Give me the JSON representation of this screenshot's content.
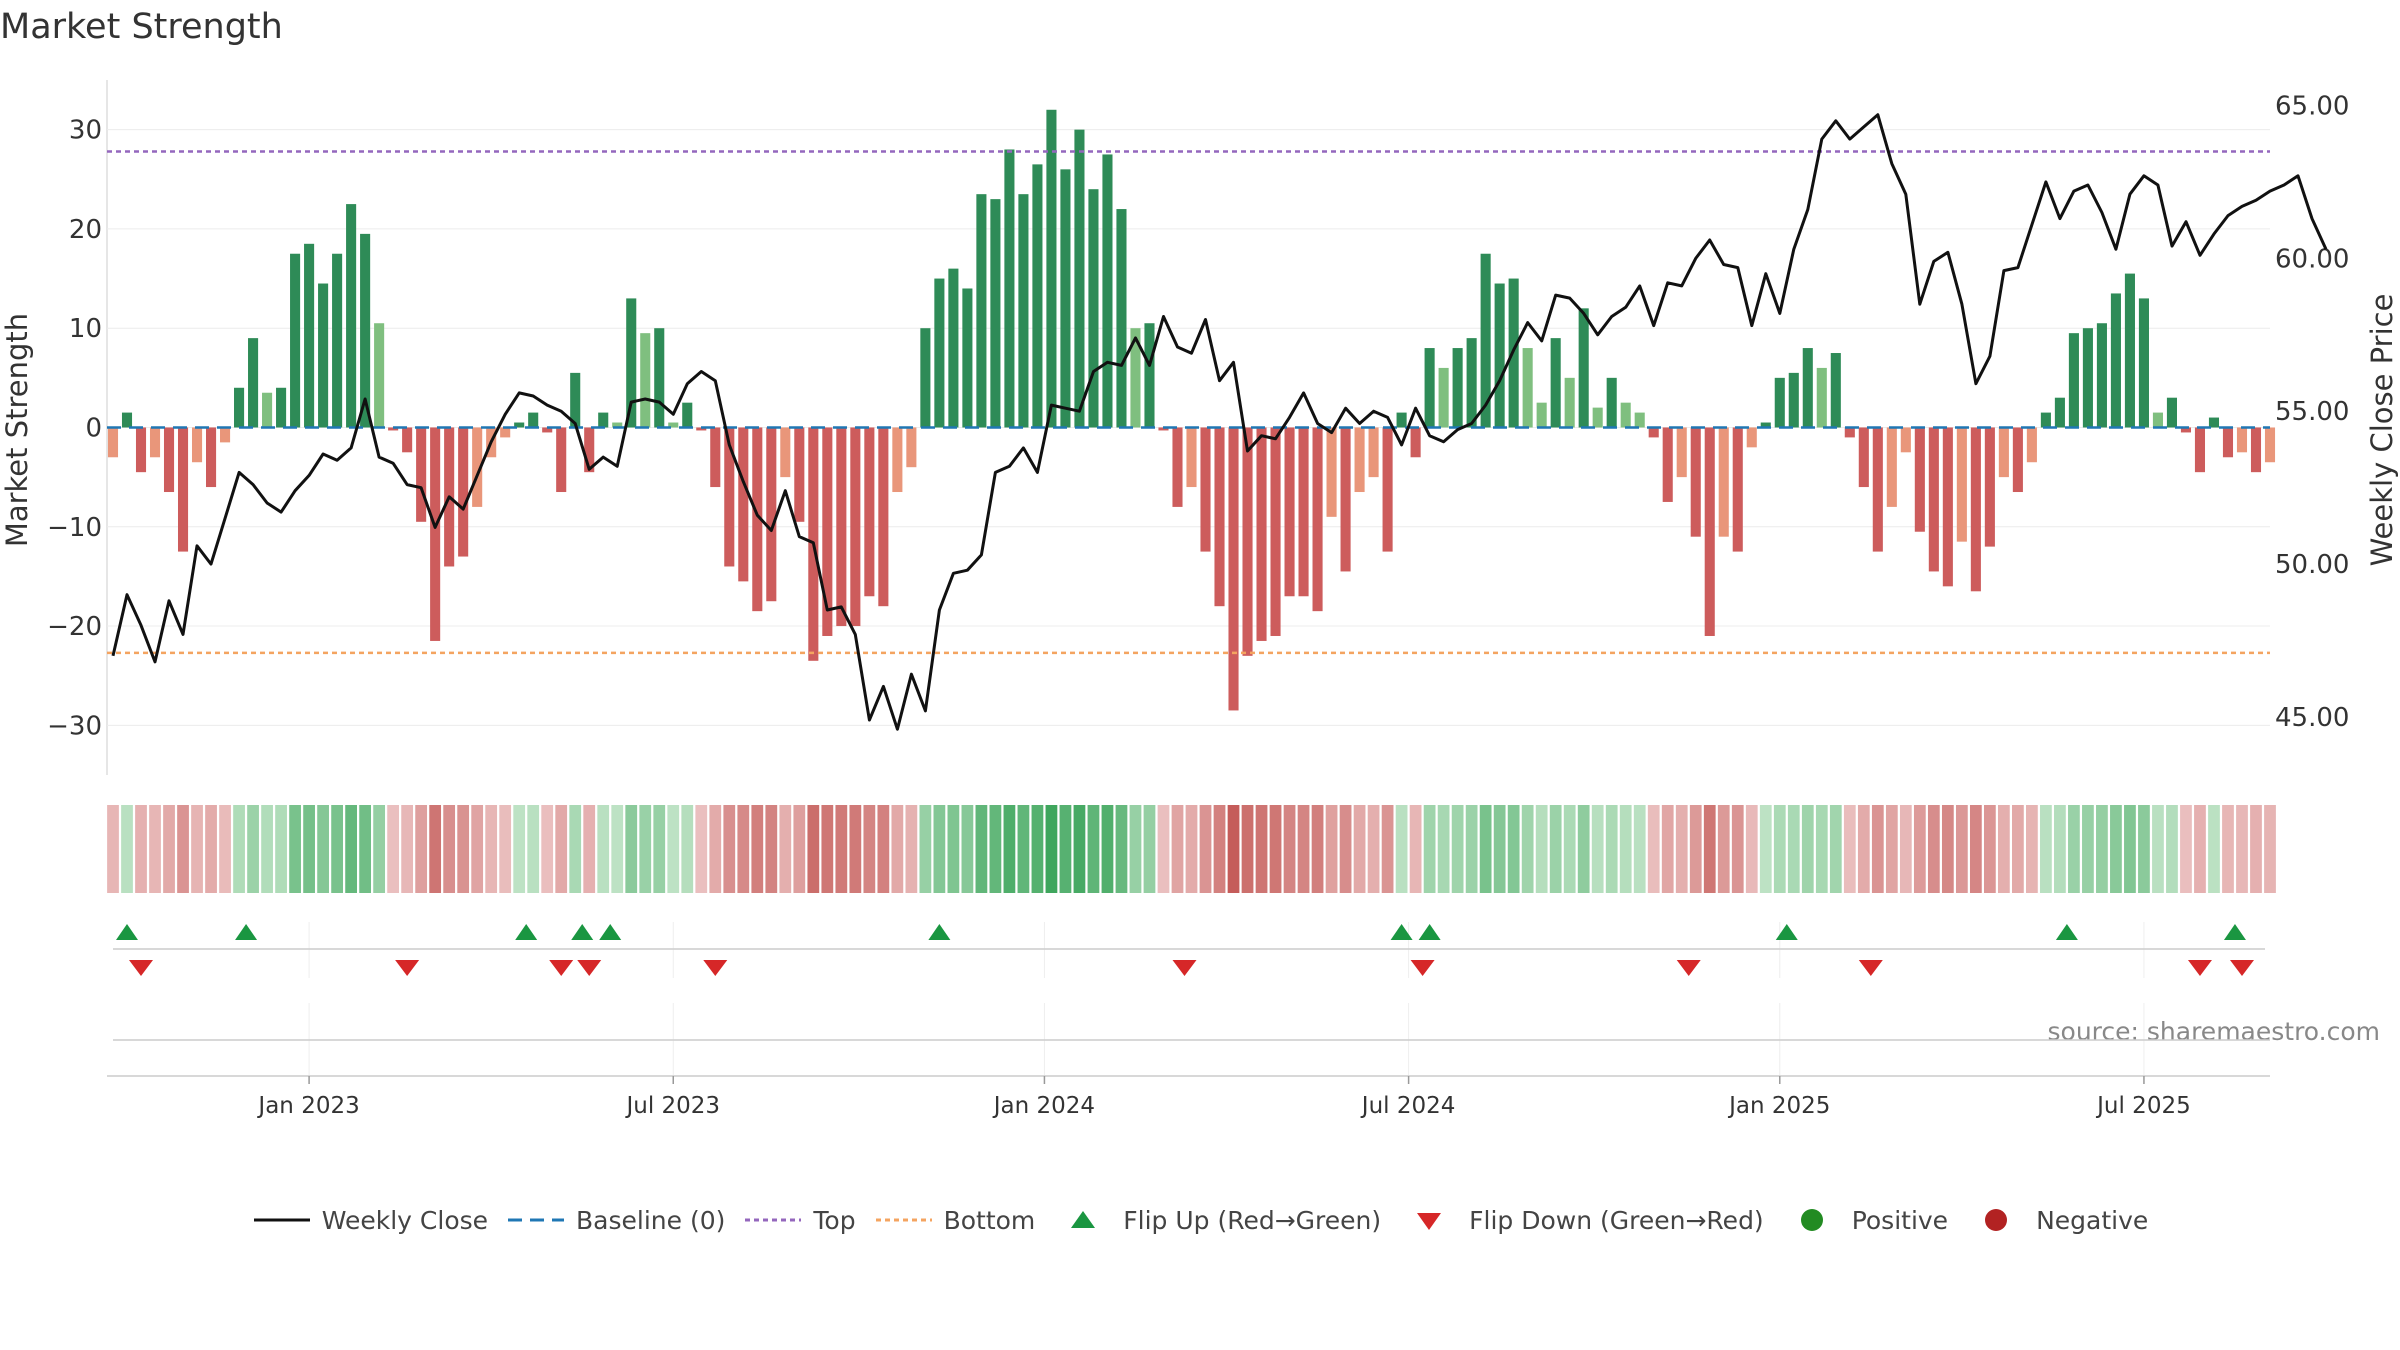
{
  "chart_data": {
    "title": "Market Strength",
    "type": "bar",
    "source": "source: sharemaestro.com",
    "y_left_label": "Market Strength",
    "y_right_label": "Weekly Close Price",
    "y_left_ticks": [
      30,
      20,
      10,
      0,
      -10,
      -20,
      -30
    ],
    "y_left_tick_labels": [
      "30",
      "20",
      "10",
      "0",
      "−10",
      "−20",
      "−30"
    ],
    "y_left_range": [
      -34.7,
      35.2
    ],
    "y_right_ticks": [
      "65.00",
      "60.00",
      "55.00",
      "50.00",
      "45.00"
    ],
    "y_right_range": [
      43.2,
      65.9
    ],
    "x_ticks": [
      "Jan 2023",
      "Jul 2023",
      "Jan 2024",
      "Jul 2024",
      "Jan 2025",
      "Jul 2025"
    ],
    "x_tick_weeks": [
      14,
      40,
      66.5,
      92.5,
      119,
      145
    ],
    "top_line": 27.8,
    "bottom_line": -22.7,
    "colors": {
      "dark_green": "#2e8b57",
      "light_green": "#7fbf7f",
      "dark_red": "#cd5c5c",
      "light_red": "#e9967a",
      "close_line": "#111111",
      "baseline": "#1f77b4",
      "top": "#9467bd",
      "bottom": "#f4a460",
      "flip_up": "#1a9641",
      "flip_down": "#d62728",
      "positive": "#228b22",
      "negative": "#b22222"
    },
    "strength": [
      -3,
      1.5,
      -4.5,
      -3,
      -6.5,
      -12.5,
      -3.5,
      -6,
      -1.5,
      4,
      9,
      3.5,
      4,
      17.5,
      18.5,
      14.5,
      17.5,
      22.5,
      19.5,
      10.5,
      -0.3,
      -2.5,
      -9.5,
      -21.5,
      -14,
      -13,
      -8,
      -3,
      -1,
      0.5,
      1.5,
      -0.5,
      -6.5,
      5.5,
      -4.5,
      1.5,
      0.5,
      13,
      9.5,
      10,
      0.5,
      2.5,
      -0.3,
      -6,
      -14,
      -15.5,
      -18.5,
      -17.5,
      -5,
      -9.5,
      -23.5,
      -21,
      -20,
      -20,
      -17,
      -18,
      -6.5,
      -4,
      10,
      15,
      16,
      14,
      23.5,
      23,
      28,
      23.5,
      26.5,
      32,
      26,
      30,
      24,
      27.5,
      22,
      10,
      10.5,
      -0.3,
      -8,
      -6,
      -12.5,
      -18,
      -28.5,
      -23,
      -21.5,
      -21,
      -17,
      -17,
      -18.5,
      -9,
      -14.5,
      -6.5,
      -5,
      -12.5,
      1.5,
      -3,
      8,
      6,
      8,
      9,
      17.5,
      14.5,
      15,
      8,
      2.5,
      9,
      5,
      12,
      2,
      5,
      2.5,
      1.5,
      -1,
      -7.5,
      -5,
      -11,
      -21,
      -11,
      -12.5,
      -2,
      0.5,
      5,
      5.5,
      8,
      6,
      7.5,
      -1,
      -6,
      -12.5,
      -8,
      -2.5,
      -10.5,
      -14.5,
      -16,
      -11.5,
      -16.5,
      -12,
      -5,
      -6.5,
      -3.5,
      1.5,
      3,
      9.5,
      10,
      10.5,
      13.5,
      15.5,
      13,
      1.5,
      3,
      -0.5,
      -4.5,
      1,
      -3,
      -2.5,
      -4.5,
      -3.5
    ],
    "close": [
      47,
      49,
      48,
      46.8,
      48.8,
      47.7,
      50.6,
      50,
      51.5,
      53,
      52.6,
      52,
      51.7,
      52.4,
      52.9,
      53.6,
      53.4,
      53.8,
      55.4,
      53.5,
      53.3,
      52.6,
      52.5,
      51.2,
      52.2,
      51.8,
      52.9,
      54,
      54.9,
      55.6,
      55.5,
      55.2,
      55,
      54.6,
      53.1,
      53.5,
      53.2,
      55.3,
      55.4,
      55.3,
      54.9,
      55.9,
      56.3,
      56,
      53.9,
      52.7,
      51.6,
      51.1,
      52.4,
      50.9,
      50.7,
      48.5,
      48.6,
      47.7,
      44.9,
      46,
      44.6,
      46.4,
      45.2,
      48.5,
      49.7,
      49.8,
      50.3,
      53,
      53.2,
      53.8,
      53,
      55.2,
      55.1,
      55,
      56.3,
      56.6,
      56.5,
      57.4,
      56.5,
      58.1,
      57.1,
      56.9,
      58,
      56,
      56.6,
      53.7,
      54.2,
      54.1,
      54.8,
      55.6,
      54.6,
      54.3,
      55.1,
      54.6,
      55,
      54.8,
      53.9,
      55.1,
      54.2,
      54,
      54.4,
      54.6,
      55.2,
      56,
      57,
      57.9,
      57.3,
      58.8,
      58.7,
      58.2,
      57.5,
      58.1,
      58.4,
      59.1,
      57.8,
      59.2,
      59.1,
      60,
      60.6,
      59.8,
      59.7,
      57.8,
      59.5,
      58.2,
      60.3,
      61.6,
      63.9,
      64.5,
      63.9,
      64.3,
      64.7,
      63.1,
      62.1,
      58.5,
      59.9,
      60.2,
      58.5,
      55.9,
      56.8,
      59.6,
      59.7,
      61.1,
      62.5,
      61.3,
      62.2,
      62.4,
      61.5,
      60.3,
      62.1,
      62.7,
      62.4,
      60.4,
      61.2,
      60.1,
      60.8,
      61.4,
      61.7,
      61.9,
      62.2,
      62.4,
      62.7,
      61.3,
      60.3
    ],
    "flip_up": [
      1,
      9.5,
      29.5,
      33.5,
      35.5,
      59,
      92,
      94,
      119.5,
      139.5,
      151.5
    ],
    "flip_down": [
      2,
      21,
      32,
      34,
      43,
      76.5,
      93.5,
      112.5,
      125.5,
      149,
      152
    ],
    "legend": [
      "Weekly Close",
      "Baseline (0)",
      "Top",
      "Bottom",
      "Flip Up (Red→Green)",
      "Flip Down (Green→Red)",
      "Positive",
      "Negative"
    ]
  }
}
